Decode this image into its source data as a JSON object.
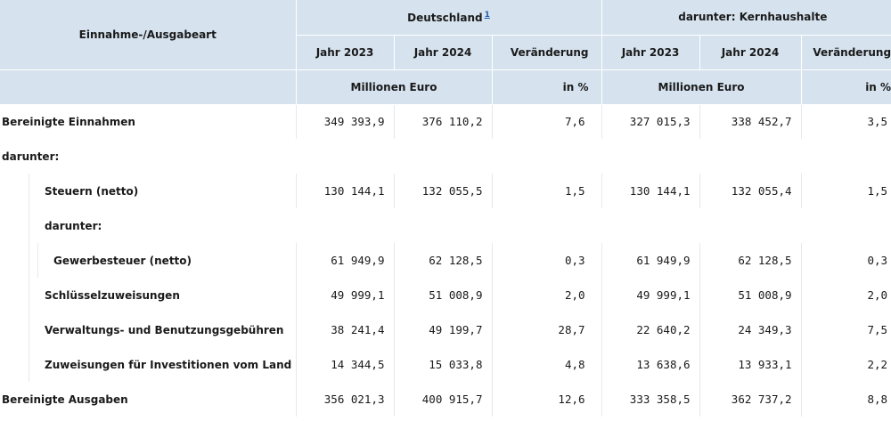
{
  "header": {
    "col_label": "Einnahme-/Ausgabeart",
    "group1": "Deutschland",
    "group1_footnote": "1",
    "group2": "darunter: Kernhaushalte",
    "year1": "Jahr 2023",
    "year2": "Jahr 2024",
    "change": "Veränderung",
    "unit_money": "Millionen Euro",
    "unit_pct": "in %"
  },
  "rows": [
    {
      "label": "Bereinigte Einnahmen",
      "v": [
        "349 393,9",
        "376 110,2",
        "7,6",
        "327 015,3",
        "338 452,7",
        "3,5"
      ]
    },
    {
      "label": "darunter:",
      "v": []
    },
    {
      "label": "Steuern (netto)",
      "v": [
        "130 144,1",
        "132 055,5",
        "1,5",
        "130 144,1",
        "132 055,4",
        "1,5"
      ]
    },
    {
      "label": "darunter:",
      "v": []
    },
    {
      "label": "Gewerbesteuer (netto)",
      "v": [
        "61 949,9",
        "62 128,5",
        "0,3",
        "61 949,9",
        "62 128,5",
        "0,3"
      ]
    },
    {
      "label": "Schlüsselzuweisungen",
      "v": [
        "49 999,1",
        "51 008,9",
        "2,0",
        "49 999,1",
        "51 008,9",
        "2,0"
      ]
    },
    {
      "label": "Verwaltungs- und Benutzungsgebühren",
      "v": [
        "38 241,4",
        "49 199,7",
        "28,7",
        "22 640,2",
        "24 349,3",
        "7,5"
      ]
    },
    {
      "label": "Zuweisungen für Investitionen vom Land",
      "v": [
        "14 344,5",
        "15 033,8",
        "4,8",
        "13 638,6",
        "13 933,1",
        "2,2"
      ]
    },
    {
      "label": "Bereinigte Ausgaben",
      "v": [
        "356 021,3",
        "400 915,7",
        "12,6",
        "333 358,5",
        "362 737,2",
        "8,8"
      ]
    }
  ]
}
